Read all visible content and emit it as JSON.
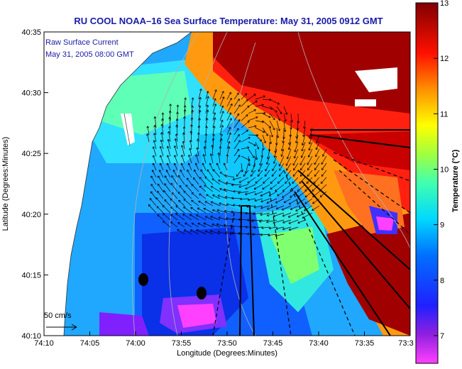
{
  "title": "RU COOL  NOAA–16  Sea Surface Temperature:  May 31, 2005 0912 GMT",
  "annotation": {
    "line1": "Raw Surface Current",
    "line2": "May 31, 2005 08:00 GMT"
  },
  "scale": {
    "label": "50 cm/s"
  },
  "axes": {
    "xlabel": "Longitude (Degrees:Minutes)",
    "ylabel": "Latitude (Degrees:Minutes)",
    "xticks": [
      "74:10",
      "74:05",
      "74:00",
      "73:55",
      "73:50",
      "73:45",
      "73:40",
      "73:35",
      "73:3"
    ],
    "yticks": [
      "40:35",
      "40:30",
      "40:25",
      "40:20",
      "40:15",
      "40:10"
    ]
  },
  "colorbar": {
    "label": "Temperature (°C)",
    "ticks": [
      "13",
      "12",
      "11",
      "10",
      "9",
      "8",
      "7"
    ],
    "min": 6.5,
    "max": 13,
    "colors": [
      "#ff00ff",
      "#8000ff",
      "#0000ff",
      "#0080ff",
      "#00ffff",
      "#80ff80",
      "#ffff00",
      "#ff8000",
      "#ff0000",
      "#800000"
    ]
  },
  "map": {
    "land_color": "#ffffff",
    "current_vectors_color": "#000000",
    "legend": "none"
  }
}
